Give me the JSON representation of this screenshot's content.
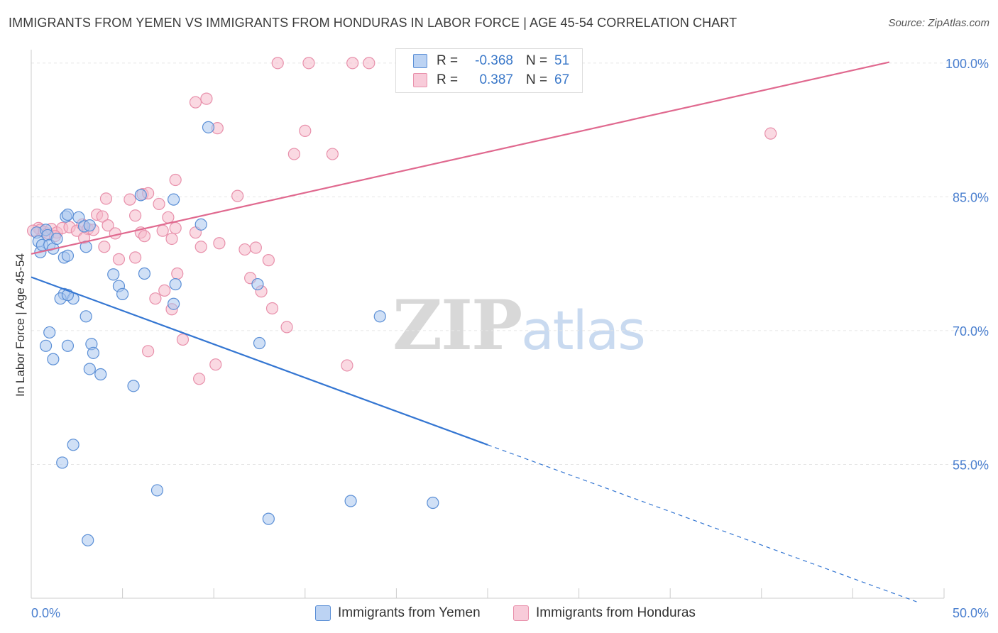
{
  "header": {
    "title": "IMMIGRANTS FROM YEMEN VS IMMIGRANTS FROM HONDURAS IN LABOR FORCE | AGE 45-54 CORRELATION CHART",
    "source": "Source: ZipAtlas.com"
  },
  "watermark": {
    "zip": "ZIP",
    "atlas": "atlas"
  },
  "legend": {
    "rows": [
      {
        "r_label": "R =",
        "r_value": "-0.368",
        "n_label": "N =",
        "n_value": "51"
      },
      {
        "r_label": "R =",
        "r_value": "0.387",
        "n_label": "N =",
        "n_value": "67"
      }
    ]
  },
  "chart_data": {
    "type": "scatter",
    "title": "IMMIGRANTS FROM YEMEN VS IMMIGRANTS FROM HONDURAS IN LABOR FORCE | AGE 45-54 CORRELATION CHART",
    "xlabel": "",
    "ylabel": "In Labor Force | Age 45-54",
    "xlim": [
      0,
      50
    ],
    "ylim": [
      40,
      101.5
    ],
    "x_tick_labels": [
      "0.0%",
      "50.0%"
    ],
    "y_ticks": [
      55,
      70,
      85,
      100
    ],
    "y_tick_labels": [
      "55.0%",
      "70.0%",
      "85.0%",
      "100.0%"
    ],
    "grid": true,
    "legend_position": "top-center",
    "colors": {
      "yemen_fill": "#a9c6ee",
      "yemen_stroke": "#5b8fd6",
      "yemen_line": "#3476d2",
      "honduras_fill": "#f5b9cb",
      "honduras_stroke": "#e890ab",
      "honduras_line": "#e0698f",
      "grid": "#e6e6e6",
      "tick_label": "#4a7fcf"
    },
    "series": [
      {
        "name": "Immigrants from Yemen",
        "r": -0.368,
        "n": 51,
        "trend": {
          "x0": 0,
          "y0": 76.0,
          "x1": 25.0,
          "y1": 57.2,
          "x_dash_end": 48.5,
          "y_dash_end": 39.6
        },
        "points": [
          [
            0.3,
            81.0
          ],
          [
            0.4,
            80.0
          ],
          [
            0.5,
            78.8
          ],
          [
            0.6,
            79.6
          ],
          [
            0.8,
            81.3
          ],
          [
            0.9,
            80.7
          ],
          [
            1.0,
            79.6
          ],
          [
            1.2,
            79.2
          ],
          [
            1.4,
            80.3
          ],
          [
            1.9,
            82.8
          ],
          [
            2.6,
            82.7
          ],
          [
            2.9,
            81.7
          ],
          [
            3.2,
            81.8
          ],
          [
            1.8,
            74.1
          ],
          [
            1.6,
            73.6
          ],
          [
            2.3,
            73.6
          ],
          [
            2.0,
            74.0
          ],
          [
            1.8,
            78.2
          ],
          [
            2.0,
            78.4
          ],
          [
            3.0,
            79.4
          ],
          [
            4.5,
            76.3
          ],
          [
            4.8,
            75.0
          ],
          [
            5.0,
            74.1
          ],
          [
            6.0,
            85.2
          ],
          [
            6.2,
            76.4
          ],
          [
            7.8,
            84.7
          ],
          [
            7.9,
            75.2
          ],
          [
            7.8,
            73.0
          ],
          [
            9.3,
            81.9
          ],
          [
            9.7,
            92.8
          ],
          [
            12.4,
            75.2
          ],
          [
            1.0,
            69.8
          ],
          [
            0.8,
            68.3
          ],
          [
            1.2,
            66.8
          ],
          [
            2.0,
            68.3
          ],
          [
            3.0,
            71.6
          ],
          [
            3.3,
            68.5
          ],
          [
            3.4,
            67.5
          ],
          [
            3.2,
            65.7
          ],
          [
            3.8,
            65.1
          ],
          [
            5.6,
            63.8
          ],
          [
            12.5,
            68.6
          ],
          [
            19.1,
            71.6
          ],
          [
            2.3,
            57.2
          ],
          [
            1.7,
            55.2
          ],
          [
            6.9,
            52.1
          ],
          [
            3.1,
            46.5
          ],
          [
            13.0,
            48.9
          ],
          [
            17.5,
            50.9
          ],
          [
            22.0,
            50.7
          ],
          [
            2.0,
            83.0
          ]
        ]
      },
      {
        "name": "Immigrants from Honduras",
        "r": 0.387,
        "n": 67,
        "trend": {
          "x0": 0,
          "y0": 78.6,
          "x1": 47.0,
          "y1": 100.1
        },
        "points": [
          [
            0.4,
            81.5
          ],
          [
            0.5,
            81.3
          ],
          [
            0.7,
            81.1
          ],
          [
            0.9,
            80.9
          ],
          [
            1.1,
            81.4
          ],
          [
            1.4,
            81.0
          ],
          [
            1.7,
            81.5
          ],
          [
            2.1,
            81.6
          ],
          [
            2.5,
            81.2
          ],
          [
            2.8,
            81.9
          ],
          [
            3.1,
            81.4
          ],
          [
            3.4,
            81.3
          ],
          [
            3.6,
            83.0
          ],
          [
            3.9,
            82.8
          ],
          [
            4.2,
            81.8
          ],
          [
            4.1,
            84.8
          ],
          [
            5.4,
            84.7
          ],
          [
            6.1,
            85.3
          ],
          [
            6.4,
            85.4
          ],
          [
            5.7,
            82.9
          ],
          [
            6.0,
            81.0
          ],
          [
            6.2,
            80.6
          ],
          [
            7.0,
            84.2
          ],
          [
            7.5,
            82.7
          ],
          [
            7.2,
            81.2
          ],
          [
            7.9,
            81.5
          ],
          [
            7.7,
            80.3
          ],
          [
            9.0,
            81.0
          ],
          [
            9.3,
            79.4
          ],
          [
            10.3,
            79.8
          ],
          [
            11.3,
            85.1
          ],
          [
            11.7,
            79.1
          ],
          [
            12.3,
            79.3
          ],
          [
            4.0,
            79.4
          ],
          [
            4.8,
            78.0
          ],
          [
            5.7,
            78.2
          ],
          [
            8.0,
            76.4
          ],
          [
            7.3,
            74.5
          ],
          [
            6.8,
            73.6
          ],
          [
            7.7,
            72.4
          ],
          [
            12.0,
            75.9
          ],
          [
            12.6,
            74.4
          ],
          [
            13.2,
            72.5
          ],
          [
            13.0,
            77.9
          ],
          [
            14.0,
            70.4
          ],
          [
            6.4,
            67.7
          ],
          [
            8.3,
            69.0
          ],
          [
            9.2,
            64.6
          ],
          [
            10.1,
            66.2
          ],
          [
            17.3,
            66.1
          ],
          [
            7.9,
            86.9
          ],
          [
            9.0,
            95.6
          ],
          [
            9.6,
            96.0
          ],
          [
            10.2,
            92.7
          ],
          [
            13.5,
            100.0
          ],
          [
            14.4,
            89.8
          ],
          [
            15.0,
            92.4
          ],
          [
            15.2,
            100.0
          ],
          [
            16.5,
            89.8
          ],
          [
            17.6,
            100.0
          ],
          [
            18.5,
            100.0
          ],
          [
            20.3,
            100.0
          ],
          [
            40.5,
            92.1
          ],
          [
            0.1,
            81.2
          ],
          [
            1.3,
            80.6
          ],
          [
            2.9,
            80.4
          ],
          [
            4.6,
            80.9
          ]
        ]
      }
    ]
  }
}
